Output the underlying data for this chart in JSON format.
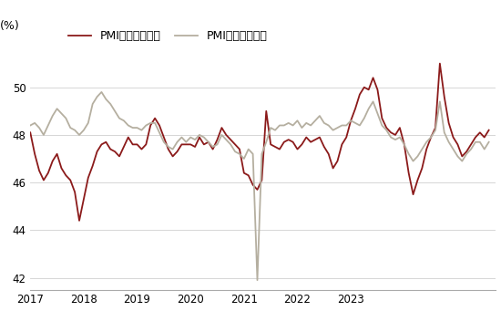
{
  "title": "(%)",
  "legend1": "PMI：产成品库存",
  "legend2": "PMI：原材料库存",
  "color1": "#8B1A1A",
  "color2": "#B5AFA0",
  "ylim": [
    41.5,
    51.8
  ],
  "yticks": [
    42,
    44,
    46,
    48,
    50
  ],
  "background": "#ffffff",
  "pmi_finished": [
    48.1,
    47.2,
    46.5,
    46.1,
    46.4,
    46.9,
    47.2,
    46.6,
    46.3,
    46.1,
    45.6,
    44.4,
    45.3,
    46.2,
    46.7,
    47.3,
    47.6,
    47.7,
    47.4,
    47.3,
    47.1,
    47.5,
    47.9,
    47.6,
    47.6,
    47.4,
    47.6,
    48.4,
    48.7,
    48.4,
    47.9,
    47.4,
    47.1,
    47.3,
    47.6,
    47.6,
    47.6,
    47.5,
    47.9,
    47.6,
    47.7,
    47.4,
    47.8,
    48.3,
    48.0,
    47.8,
    47.6,
    47.4,
    46.4,
    46.3,
    45.9,
    45.7,
    46.1,
    49.0,
    47.6,
    47.5,
    47.4,
    47.7,
    47.8,
    47.7,
    47.4,
    47.6,
    47.9,
    47.7,
    47.8,
    47.9,
    47.5,
    47.2,
    46.6,
    46.9,
    47.6,
    47.9,
    48.6,
    49.1,
    49.7,
    50.0,
    49.9,
    50.4,
    49.9,
    48.7,
    48.3,
    48.1,
    48.0,
    48.3,
    47.6,
    46.4,
    45.5,
    46.1,
    46.6,
    47.4,
    47.9,
    48.3,
    51.0,
    49.6,
    48.5,
    47.9,
    47.6,
    47.1,
    47.3,
    47.6,
    47.9,
    48.1,
    47.9,
    48.2
  ],
  "pmi_raw": [
    48.4,
    48.5,
    48.3,
    48.0,
    48.4,
    48.8,
    49.1,
    48.9,
    48.7,
    48.3,
    48.2,
    48.0,
    48.2,
    48.5,
    49.3,
    49.6,
    49.8,
    49.5,
    49.3,
    49.0,
    48.7,
    48.6,
    48.4,
    48.3,
    48.3,
    48.2,
    48.4,
    48.5,
    48.5,
    48.1,
    47.7,
    47.5,
    47.4,
    47.7,
    47.9,
    47.7,
    47.9,
    47.8,
    48.0,
    47.9,
    47.7,
    47.5,
    47.6,
    48.0,
    47.8,
    47.6,
    47.3,
    47.2,
    47.0,
    47.4,
    47.2,
    41.9,
    47.2,
    47.7,
    48.3,
    48.2,
    48.4,
    48.4,
    48.5,
    48.4,
    48.6,
    48.3,
    48.5,
    48.4,
    48.6,
    48.8,
    48.5,
    48.4,
    48.2,
    48.3,
    48.4,
    48.4,
    48.6,
    48.5,
    48.4,
    48.7,
    49.1,
    49.4,
    48.9,
    48.4,
    48.2,
    47.9,
    47.8,
    47.9,
    47.6,
    47.2,
    46.9,
    47.1,
    47.4,
    47.7,
    47.9,
    48.2,
    49.4,
    48.1,
    47.7,
    47.4,
    47.1,
    46.9,
    47.2,
    47.4,
    47.7,
    47.7,
    47.4,
    47.7
  ],
  "xtick_years": [
    2017,
    2018,
    2019,
    2020,
    2021,
    2022,
    2023
  ]
}
